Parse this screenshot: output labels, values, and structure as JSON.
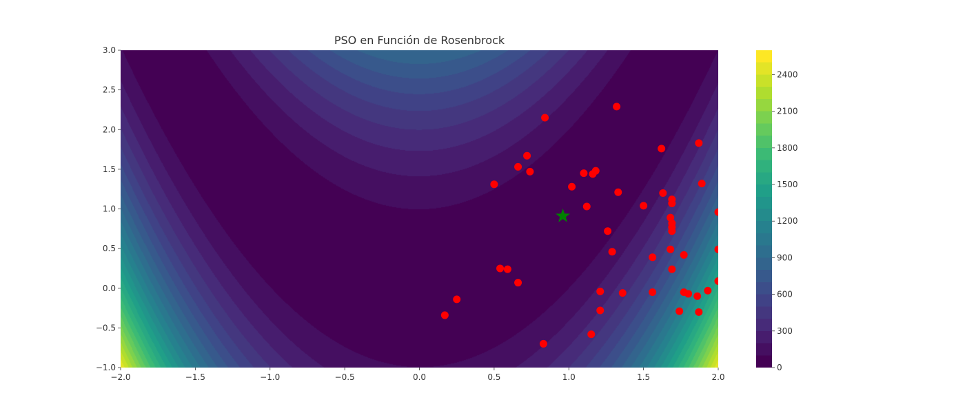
{
  "chart_data": {
    "type": "contour",
    "title": "PSO en Función de Rosenbrock",
    "xlabel": "",
    "ylabel": "",
    "xlim": [
      -2.0,
      2.0
    ],
    "ylim": [
      -1.0,
      3.0
    ],
    "x_ticks": [
      -2.0,
      -1.5,
      -1.0,
      -0.5,
      0.0,
      0.5,
      1.0,
      1.5,
      2.0
    ],
    "x_tick_labels": [
      "−2.0",
      "−1.5",
      "−1.0",
      "−0.5",
      "0.0",
      "0.5",
      "1.0",
      "1.5",
      "2.0"
    ],
    "y_ticks": [
      -1.0,
      -0.5,
      0.0,
      0.5,
      1.0,
      1.5,
      2.0,
      2.5,
      3.0
    ],
    "y_tick_labels": [
      "−1.0",
      "−0.5",
      "0.0",
      "0.5",
      "1.0",
      "1.5",
      "2.0",
      "2.5",
      "3.0"
    ],
    "function": "rosenbrock",
    "colormap": "viridis",
    "contour_levels": [
      0,
      100,
      200,
      300,
      400,
      500,
      600,
      700,
      800,
      900,
      1000,
      1100,
      1200,
      1300,
      1400,
      1500,
      1600,
      1700,
      1800,
      1900,
      2000,
      2100,
      2200,
      2300,
      2400,
      2500,
      2600
    ],
    "colorbar": {
      "range": [
        0,
        2600
      ],
      "ticks": [
        0,
        300,
        600,
        900,
        1200,
        1500,
        1800,
        2100,
        2400
      ],
      "tick_labels": [
        "0",
        "300",
        "600",
        "900",
        "1200",
        "1500",
        "1800",
        "2100",
        "2400"
      ]
    },
    "series": [
      {
        "marker": "circle",
        "color": "#ff0000",
        "points": [
          [
            0.84,
            2.15
          ],
          [
            1.32,
            2.29
          ],
          [
            0.72,
            1.67
          ],
          [
            0.66,
            1.53
          ],
          [
            0.74,
            1.47
          ],
          [
            0.5,
            1.31
          ],
          [
            1.1,
            1.45
          ],
          [
            1.16,
            1.44
          ],
          [
            1.18,
            1.48
          ],
          [
            1.02,
            1.28
          ],
          [
            1.33,
            1.21
          ],
          [
            1.12,
            1.03
          ],
          [
            1.62,
            1.76
          ],
          [
            1.87,
            1.83
          ],
          [
            1.89,
            1.32
          ],
          [
            1.63,
            1.2
          ],
          [
            1.69,
            1.12
          ],
          [
            1.69,
            1.07
          ],
          [
            1.5,
            1.04
          ],
          [
            2.0,
            0.96
          ],
          [
            1.68,
            0.89
          ],
          [
            1.69,
            0.82
          ],
          [
            1.69,
            0.77
          ],
          [
            1.69,
            0.72
          ],
          [
            1.26,
            0.72
          ],
          [
            1.68,
            0.49
          ],
          [
            1.29,
            0.46
          ],
          [
            1.77,
            0.42
          ],
          [
            1.56,
            0.39
          ],
          [
            2.0,
            0.49
          ],
          [
            0.54,
            0.25
          ],
          [
            0.59,
            0.24
          ],
          [
            1.69,
            0.24
          ],
          [
            0.66,
            0.07
          ],
          [
            2.0,
            0.09
          ],
          [
            1.21,
            -0.04
          ],
          [
            1.36,
            -0.06
          ],
          [
            1.56,
            -0.05
          ],
          [
            1.77,
            -0.05
          ],
          [
            1.8,
            -0.07
          ],
          [
            1.86,
            -0.1
          ],
          [
            1.93,
            -0.03
          ],
          [
            0.25,
            -0.14
          ],
          [
            1.21,
            -0.28
          ],
          [
            1.74,
            -0.29
          ],
          [
            1.87,
            -0.3
          ],
          [
            0.17,
            -0.34
          ],
          [
            1.15,
            -0.58
          ],
          [
            0.83,
            -0.7
          ]
        ]
      },
      {
        "marker": "star",
        "color": "#008000",
        "points": [
          [
            0.96,
            0.91
          ]
        ]
      }
    ]
  }
}
